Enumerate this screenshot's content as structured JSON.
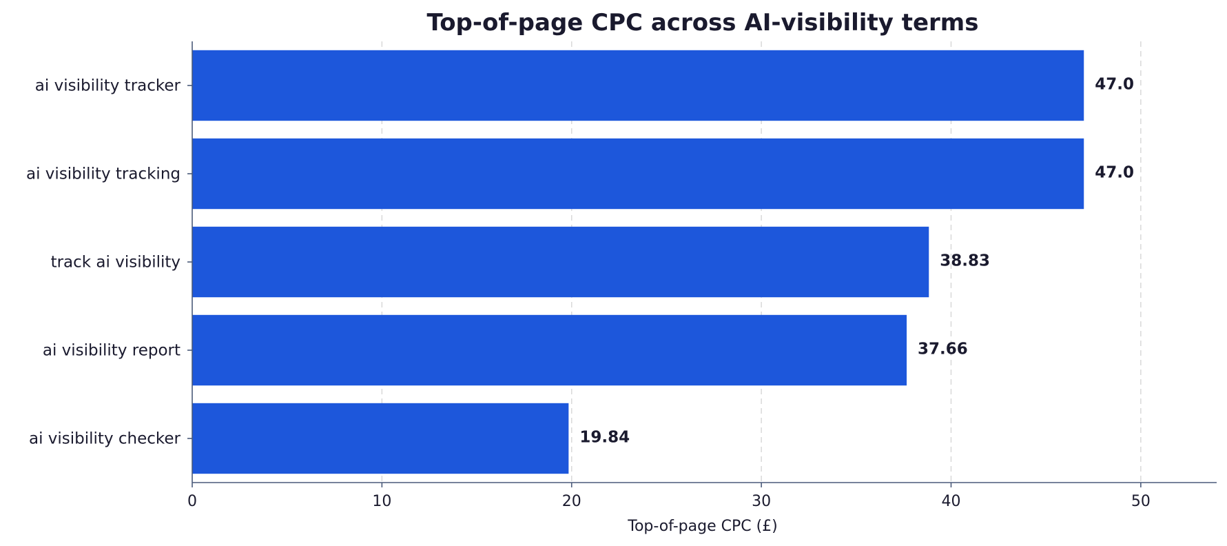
{
  "chart_data": {
    "type": "bar",
    "orientation": "horizontal",
    "title": "Top-of-page CPC across AI-visibility terms",
    "xlabel": "Top-of-page CPC (£)",
    "ylabel": "",
    "categories": [
      "ai visibility tracker",
      "ai visibility tracking",
      "track ai visibility",
      "ai visibility report",
      "ai visibility checker"
    ],
    "values": [
      47.0,
      47.0,
      38.83,
      37.66,
      19.84
    ],
    "value_labels": [
      "47.0",
      "47.0",
      "38.83",
      "37.66",
      "19.84"
    ],
    "xlim": [
      0,
      54
    ],
    "xticks": [
      0,
      10,
      20,
      30,
      40,
      50
    ],
    "xtick_labels": [
      "0",
      "10",
      "20",
      "30",
      "40",
      "50"
    ],
    "grid": "x-dashed",
    "bar_color": "#1d57db",
    "legend": "none"
  }
}
